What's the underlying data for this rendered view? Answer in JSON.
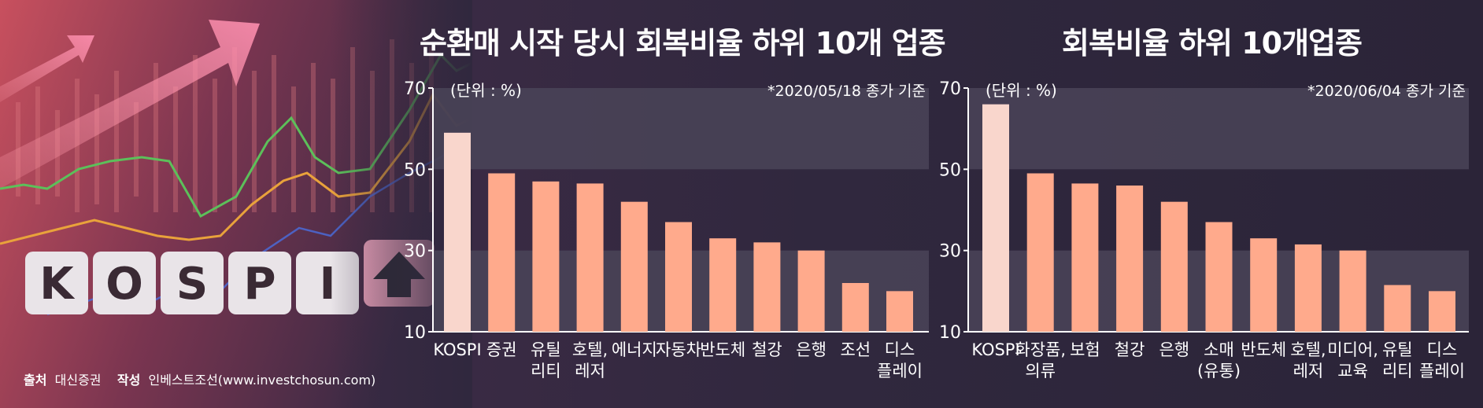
{
  "credit": {
    "source_label": "출처",
    "source_value": "대신증권",
    "author_label": "작성",
    "author_value": "인베스트조선(www.investchosun.com)"
  },
  "colors": {
    "highlight_bar": "#f9d6cc",
    "bar": "#ffaa8c",
    "axis": "#ffffff",
    "band": "#4a4458"
  },
  "chart_data": [
    {
      "type": "bar",
      "title": "순환매 시작 당시 회복비율 하위 10개 업종",
      "unit_label": "(단위 : %)",
      "note": "*2020/05/18 종가 기준",
      "ylim": [
        10,
        70
      ],
      "yticks": [
        10,
        30,
        50,
        70
      ],
      "categories": [
        "KOSPI",
        "증권",
        "유틸\n리티",
        "호텔,\n레저",
        "에너지",
        "자동차",
        "반도체",
        "철강",
        "은행",
        "조선",
        "디스\n플레이"
      ],
      "values": [
        59,
        49,
        47,
        46.5,
        42,
        37,
        33,
        32,
        30,
        22,
        20
      ],
      "highlight_index": 0
    },
    {
      "type": "bar",
      "title": "회복비율 하위 10개업종",
      "unit_label": "(단위 : %)",
      "note": "*2020/06/04 종가 기준",
      "ylim": [
        10,
        70
      ],
      "yticks": [
        10,
        30,
        50,
        70
      ],
      "categories": [
        "KOSPI",
        "화장품,\n의류",
        "보험",
        "철강",
        "은행",
        "소매\n(유통)",
        "반도체",
        "호텔,\n레저",
        "미디어,\n교육",
        "유틸\n리티",
        "디스\n플레이"
      ],
      "values": [
        66,
        49,
        46.5,
        46,
        42,
        37,
        33,
        31.5,
        30,
        21.5,
        20
      ],
      "highlight_index": 0
    }
  ]
}
